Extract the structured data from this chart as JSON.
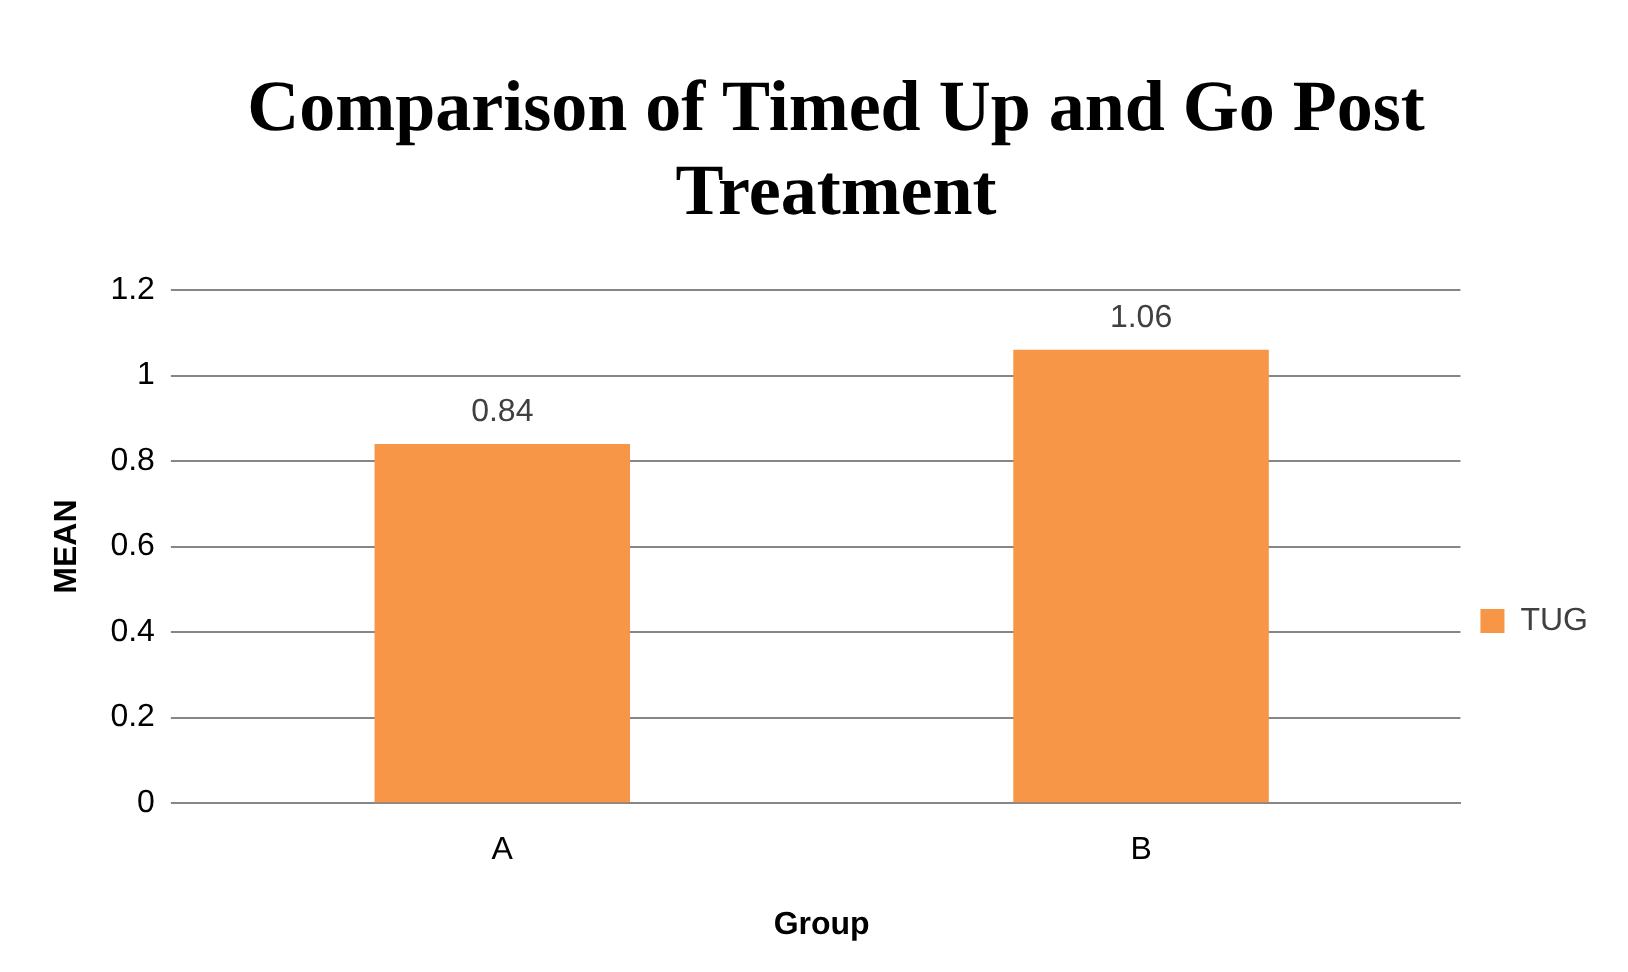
{
  "chart_data": {
    "type": "bar",
    "title": "Comparison of Timed Up and Go Post Treatment",
    "xlabel": "Group",
    "ylabel": "MEAN",
    "categories": [
      "A",
      "B"
    ],
    "series": [
      {
        "name": "TUG",
        "color": "#f79646",
        "values": [
          0.84,
          1.06
        ]
      }
    ],
    "ylim": [
      0,
      1.2
    ],
    "yticks": [
      0,
      0.2,
      0.4,
      0.6,
      0.8,
      1,
      1.2
    ],
    "grid": "y",
    "legend": "right",
    "data_labels": true
  }
}
